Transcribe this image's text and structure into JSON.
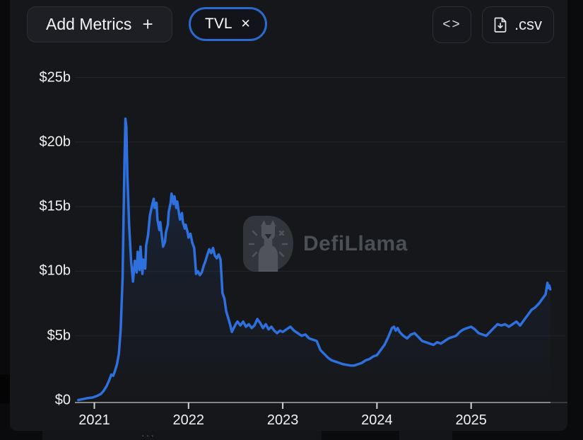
{
  "header": {
    "add_metrics_label": "Add Metrics",
    "add_metrics_plus": "+",
    "metric_pill": {
      "label": "TVL",
      "close": "✕"
    },
    "embed_glyph": "<>",
    "csv_label": ".csv"
  },
  "watermark": {
    "brand": "DefiLlama"
  },
  "bottom_strip": {
    "dots": "···"
  },
  "colors": {
    "accent_line": "#2e70de",
    "pill_border": "#2c69cf",
    "axis_line": "#85868a",
    "tick": "#d2d3d5",
    "gridline": "rgba(255,255,255,0.055)"
  },
  "chart_data": {
    "type": "area",
    "series_name": "TVL",
    "unit": "USD billions",
    "title": "",
    "xlabel": "",
    "ylabel": "",
    "ylim": [
      0,
      25
    ],
    "xlim": [
      2020.8,
      2025.9
    ],
    "grid": "horizontal-faint",
    "legend": "none",
    "y_ticks": [
      {
        "label": "$0",
        "value": 0
      },
      {
        "label": "$5b",
        "value": 5
      },
      {
        "label": "$10b",
        "value": 10
      },
      {
        "label": "$15b",
        "value": 15
      },
      {
        "label": "$20b",
        "value": 20
      },
      {
        "label": "$25b",
        "value": 25
      }
    ],
    "x_ticks": [
      {
        "label": "2021",
        "year": 2021
      },
      {
        "label": "2022",
        "year": 2022
      },
      {
        "label": "2023",
        "year": 2023
      },
      {
        "label": "2024",
        "year": 2024
      },
      {
        "label": "2025",
        "year": 2025
      }
    ],
    "points": [
      [
        2020.83,
        0.03
      ],
      [
        2020.88,
        0.1
      ],
      [
        2020.93,
        0.18
      ],
      [
        2020.98,
        0.22
      ],
      [
        2021.03,
        0.35
      ],
      [
        2021.07,
        0.5
      ],
      [
        2021.1,
        0.75
      ],
      [
        2021.13,
        1.1
      ],
      [
        2021.16,
        1.6
      ],
      [
        2021.18,
        2.0
      ],
      [
        2021.2,
        1.9
      ],
      [
        2021.22,
        2.3
      ],
      [
        2021.24,
        2.8
      ],
      [
        2021.26,
        3.6
      ],
      [
        2021.28,
        5.5
      ],
      [
        2021.3,
        9.5
      ],
      [
        2021.31,
        14.0
      ],
      [
        2021.32,
        18.5
      ],
      [
        2021.33,
        21.8
      ],
      [
        2021.34,
        21.2
      ],
      [
        2021.35,
        17.5
      ],
      [
        2021.37,
        13.5
      ],
      [
        2021.39,
        10.8
      ],
      [
        2021.41,
        9.2
      ],
      [
        2021.43,
        10.8
      ],
      [
        2021.45,
        9.9
      ],
      [
        2021.46,
        11.5
      ],
      [
        2021.48,
        10.1
      ],
      [
        2021.49,
        11.9
      ],
      [
        2021.51,
        9.8
      ],
      [
        2021.52,
        10.9
      ],
      [
        2021.54,
        10.2
      ],
      [
        2021.55,
        12.0
      ],
      [
        2021.57,
        12.8
      ],
      [
        2021.59,
        14.3
      ],
      [
        2021.61,
        15.0
      ],
      [
        2021.63,
        15.6
      ],
      [
        2021.64,
        14.9
      ],
      [
        2021.66,
        15.3
      ],
      [
        2021.67,
        14.0
      ],
      [
        2021.69,
        13.2
      ],
      [
        2021.7,
        13.8
      ],
      [
        2021.72,
        12.5
      ],
      [
        2021.73,
        11.9
      ],
      [
        2021.75,
        12.3
      ],
      [
        2021.76,
        13.0
      ],
      [
        2021.78,
        13.6
      ],
      [
        2021.79,
        14.6
      ],
      [
        2021.81,
        15.3
      ],
      [
        2021.82,
        16.0
      ],
      [
        2021.84,
        15.2
      ],
      [
        2021.85,
        15.8
      ],
      [
        2021.87,
        14.9
      ],
      [
        2021.88,
        15.4
      ],
      [
        2021.9,
        14.4
      ],
      [
        2021.91,
        14.0
      ],
      [
        2021.93,
        14.5
      ],
      [
        2021.94,
        13.8
      ],
      [
        2021.96,
        13.3
      ],
      [
        2021.97,
        13.6
      ],
      [
        2021.99,
        13.0
      ],
      [
        2022.0,
        12.6
      ],
      [
        2022.02,
        12.9
      ],
      [
        2022.04,
        12.2
      ],
      [
        2022.06,
        11.8
      ],
      [
        2022.08,
        9.8
      ],
      [
        2022.1,
        10.0
      ],
      [
        2022.12,
        9.7
      ],
      [
        2022.14,
        9.9
      ],
      [
        2022.16,
        10.4
      ],
      [
        2022.18,
        10.8
      ],
      [
        2022.2,
        11.3
      ],
      [
        2022.22,
        11.7
      ],
      [
        2022.24,
        11.4
      ],
      [
        2022.26,
        11.8
      ],
      [
        2022.28,
        11.2
      ],
      [
        2022.3,
        11.0
      ],
      [
        2022.32,
        11.3
      ],
      [
        2022.34,
        10.9
      ],
      [
        2022.36,
        8.3
      ],
      [
        2022.38,
        7.9
      ],
      [
        2022.4,
        6.9
      ],
      [
        2022.42,
        6.4
      ],
      [
        2022.44,
        5.9
      ],
      [
        2022.46,
        5.3
      ],
      [
        2022.48,
        5.6
      ],
      [
        2022.5,
        5.9
      ],
      [
        2022.52,
        6.1
      ],
      [
        2022.55,
        5.8
      ],
      [
        2022.58,
        6.1
      ],
      [
        2022.61,
        5.7
      ],
      [
        2022.64,
        5.9
      ],
      [
        2022.67,
        5.6
      ],
      [
        2022.7,
        5.8
      ],
      [
        2022.73,
        6.3
      ],
      [
        2022.76,
        6.0
      ],
      [
        2022.79,
        5.6
      ],
      [
        2022.82,
        5.9
      ],
      [
        2022.85,
        5.5
      ],
      [
        2022.88,
        5.7
      ],
      [
        2022.91,
        5.4
      ],
      [
        2022.94,
        5.2
      ],
      [
        2022.97,
        5.4
      ],
      [
        2023.0,
        5.3
      ],
      [
        2023.04,
        5.5
      ],
      [
        2023.08,
        5.7
      ],
      [
        2023.12,
        5.4
      ],
      [
        2023.16,
        5.2
      ],
      [
        2023.2,
        5.0
      ],
      [
        2023.24,
        5.1
      ],
      [
        2023.28,
        4.8
      ],
      [
        2023.32,
        4.7
      ],
      [
        2023.36,
        4.6
      ],
      [
        2023.4,
        3.9
      ],
      [
        2023.44,
        3.6
      ],
      [
        2023.48,
        3.3
      ],
      [
        2023.52,
        3.1
      ],
      [
        2023.56,
        3.0
      ],
      [
        2023.6,
        2.9
      ],
      [
        2023.64,
        2.8
      ],
      [
        2023.68,
        2.75
      ],
      [
        2023.72,
        2.7
      ],
      [
        2023.76,
        2.7
      ],
      [
        2023.8,
        2.8
      ],
      [
        2023.84,
        2.9
      ],
      [
        2023.88,
        3.1
      ],
      [
        2023.92,
        3.2
      ],
      [
        2023.96,
        3.4
      ],
      [
        2024.0,
        3.5
      ],
      [
        2024.04,
        3.9
      ],
      [
        2024.08,
        4.3
      ],
      [
        2024.12,
        4.9
      ],
      [
        2024.16,
        5.6
      ],
      [
        2024.18,
        5.7
      ],
      [
        2024.2,
        5.4
      ],
      [
        2024.22,
        5.6
      ],
      [
        2024.24,
        5.3
      ],
      [
        2024.28,
        5.0
      ],
      [
        2024.32,
        4.8
      ],
      [
        2024.36,
        5.1
      ],
      [
        2024.4,
        5.2
      ],
      [
        2024.44,
        4.9
      ],
      [
        2024.48,
        4.6
      ],
      [
        2024.52,
        4.5
      ],
      [
        2024.56,
        4.4
      ],
      [
        2024.6,
        4.3
      ],
      [
        2024.64,
        4.5
      ],
      [
        2024.68,
        4.4
      ],
      [
        2024.72,
        4.6
      ],
      [
        2024.76,
        4.8
      ],
      [
        2024.8,
        4.9
      ],
      [
        2024.84,
        5.0
      ],
      [
        2024.88,
        5.3
      ],
      [
        2024.92,
        5.5
      ],
      [
        2024.96,
        5.6
      ],
      [
        2025.0,
        5.7
      ],
      [
        2025.04,
        5.5
      ],
      [
        2025.08,
        5.2
      ],
      [
        2025.12,
        5.1
      ],
      [
        2025.16,
        5.0
      ],
      [
        2025.2,
        5.3
      ],
      [
        2025.24,
        5.6
      ],
      [
        2025.28,
        5.9
      ],
      [
        2025.32,
        5.8
      ],
      [
        2025.36,
        5.9
      ],
      [
        2025.4,
        5.7
      ],
      [
        2025.44,
        5.9
      ],
      [
        2025.48,
        6.1
      ],
      [
        2025.52,
        5.8
      ],
      [
        2025.56,
        6.2
      ],
      [
        2025.6,
        6.6
      ],
      [
        2025.64,
        7.0
      ],
      [
        2025.68,
        7.2
      ],
      [
        2025.72,
        7.5
      ],
      [
        2025.76,
        7.9
      ],
      [
        2025.79,
        8.2
      ],
      [
        2025.81,
        9.1
      ],
      [
        2025.82,
        8.7
      ],
      [
        2025.83,
        8.9
      ],
      [
        2025.84,
        8.6
      ]
    ]
  }
}
